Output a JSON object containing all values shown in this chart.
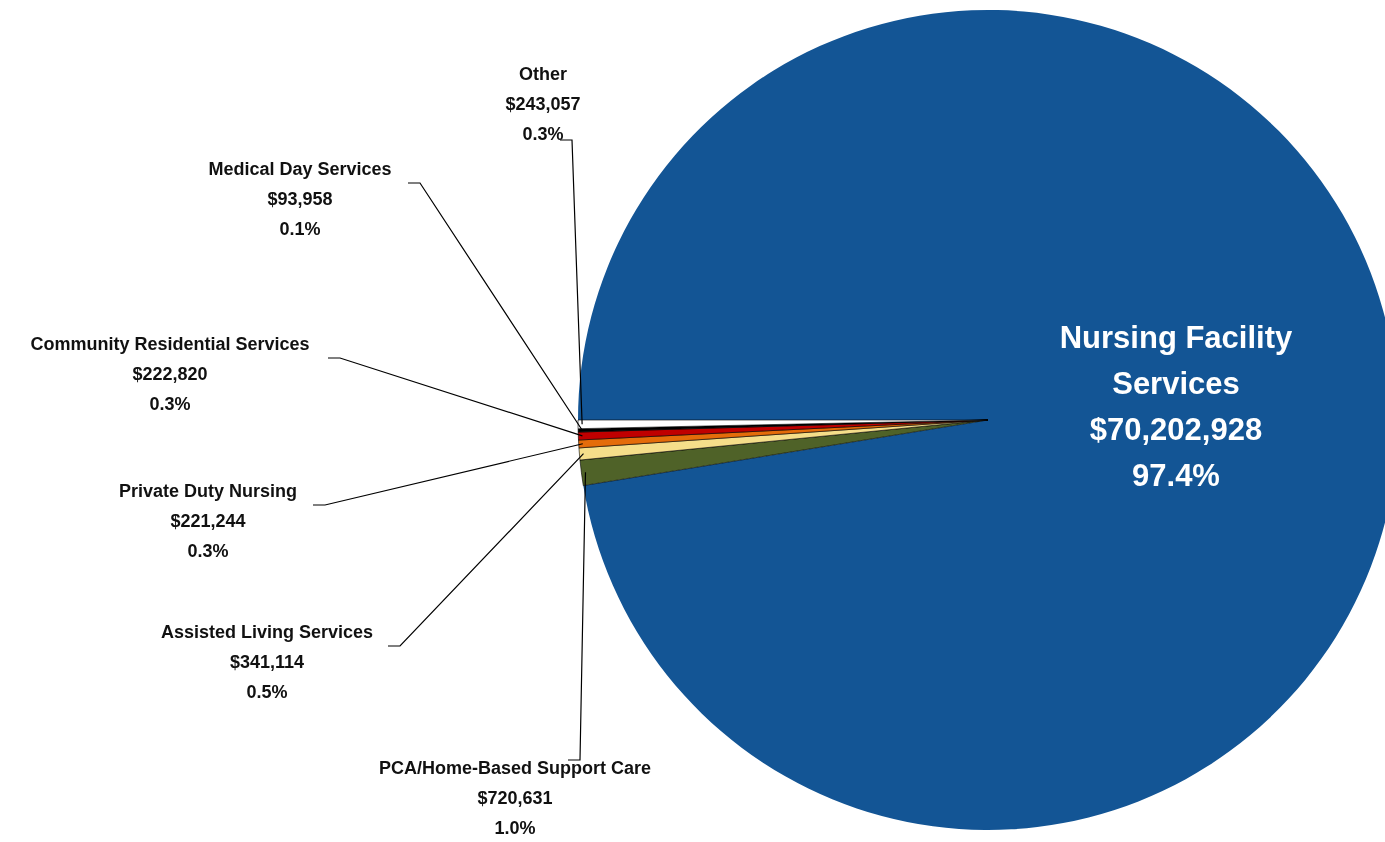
{
  "chart_data": {
    "type": "pie",
    "categories": [
      "Nursing Facility Services",
      "PCA/Home-Based Support Care",
      "Assisted Living Services",
      "Private Duty Nursing",
      "Community Residential Services",
      "Medical Day Services",
      "Other"
    ],
    "values": [
      70202928,
      720631,
      341114,
      221244,
      222820,
      93958,
      243057
    ],
    "value_labels": [
      "$70,202,928\n97.4%",
      "$720,631\n1.0%",
      "$341,114\n0.5%",
      "$221,244\n0.3%",
      "$222,820\n0.3%",
      "$93,958\n0.1%",
      "$243,057\n0.3%"
    ],
    "colors": [
      "#135595",
      "#4f6228",
      "#f5de8a",
      "#e46c0a",
      "#c00000",
      "#000000",
      "#ffffff"
    ]
  }
}
